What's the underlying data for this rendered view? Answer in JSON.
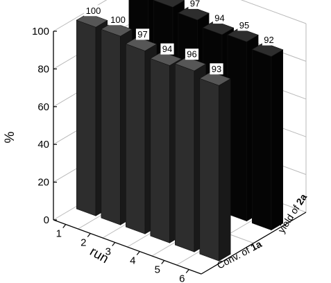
{
  "chart_data": {
    "type": "bar3d",
    "ylabel": "%",
    "xlabel": "run",
    "ylim": [
      0,
      100
    ],
    "yticks": [
      0,
      20,
      40,
      60,
      80,
      100
    ],
    "runs": [
      "1",
      "2",
      "3",
      "4",
      "5",
      "6"
    ],
    "grid": true,
    "series": [
      {
        "name_parts": [
          "Conv. of ",
          "1a"
        ],
        "values": [
          100,
          100,
          97,
          94,
          96,
          93
        ],
        "color": "#2d2d2d"
      },
      {
        "name_parts": [
          "yield of ",
          "2a"
        ],
        "values": [
          100,
          99,
          97,
          94,
          95,
          92
        ],
        "color": "#050505"
      }
    ]
  }
}
